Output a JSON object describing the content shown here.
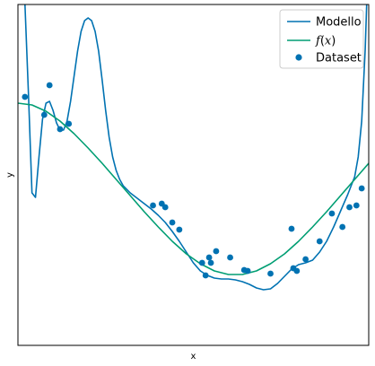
{
  "chart_data": {
    "type": "line",
    "title": "",
    "xlabel": "x",
    "ylabel": "y",
    "xticks_shown": false,
    "yticks_shown": false,
    "grid": false,
    "legend_position": "top-right",
    "xlim": [
      0,
      1
    ],
    "ylim": [
      -1.9,
      1.9
    ],
    "series": [
      {
        "name": "Modello",
        "kind": "line",
        "color": "#0072B2",
        "x": [
          0.0,
          0.02,
          0.03,
          0.04,
          0.05,
          0.06,
          0.07,
          0.08,
          0.09,
          0.1,
          0.11,
          0.12,
          0.13,
          0.14,
          0.15,
          0.16,
          0.17,
          0.18,
          0.19,
          0.2,
          0.21,
          0.22,
          0.23,
          0.24,
          0.25,
          0.26,
          0.27,
          0.28,
          0.29,
          0.3,
          0.32,
          0.34,
          0.36,
          0.38,
          0.4,
          0.42,
          0.44,
          0.46,
          0.48,
          0.5,
          0.52,
          0.54,
          0.56,
          0.58,
          0.6,
          0.62,
          0.64,
          0.66,
          0.68,
          0.7,
          0.72,
          0.74,
          0.76,
          0.78,
          0.8,
          0.82,
          0.84,
          0.86,
          0.88,
          0.9,
          0.92,
          0.94,
          0.96,
          0.97,
          0.98,
          0.99,
          1.0
        ],
        "y": [
          4.0,
          1.9,
          0.9,
          -0.2,
          -0.25,
          0.2,
          0.62,
          0.8,
          0.82,
          0.72,
          0.58,
          0.5,
          0.5,
          0.6,
          0.82,
          1.1,
          1.38,
          1.6,
          1.72,
          1.75,
          1.72,
          1.6,
          1.38,
          1.06,
          0.72,
          0.42,
          0.2,
          0.05,
          -0.05,
          -0.12,
          -0.2,
          -0.26,
          -0.32,
          -0.38,
          -0.45,
          -0.53,
          -0.63,
          -0.74,
          -0.86,
          -0.98,
          -1.07,
          -1.12,
          -1.15,
          -1.16,
          -1.16,
          -1.17,
          -1.19,
          -1.22,
          -1.26,
          -1.28,
          -1.27,
          -1.21,
          -1.13,
          -1.05,
          -1.0,
          -0.98,
          -0.95,
          -0.86,
          -0.74,
          -0.58,
          -0.4,
          -0.22,
          -0.02,
          0.2,
          0.6,
          1.4,
          2.6
        ]
      },
      {
        "name": "$f(x)$",
        "kind": "line",
        "color": "#009E73",
        "x": [
          0.0,
          0.04,
          0.08,
          0.12,
          0.16,
          0.2,
          0.24,
          0.28,
          0.32,
          0.36,
          0.4,
          0.44,
          0.48,
          0.52,
          0.56,
          0.6,
          0.64,
          0.68,
          0.72,
          0.76,
          0.8,
          0.84,
          0.88,
          0.92,
          0.96,
          1.0
        ],
        "y": [
          0.8,
          0.78,
          0.71,
          0.6,
          0.46,
          0.3,
          0.13,
          -0.05,
          -0.23,
          -0.41,
          -0.58,
          -0.74,
          -0.88,
          -0.99,
          -1.07,
          -1.11,
          -1.11,
          -1.07,
          -0.99,
          -0.88,
          -0.74,
          -0.58,
          -0.41,
          -0.23,
          -0.05,
          0.13
        ]
      },
      {
        "name": "Dataset",
        "kind": "scatter",
        "color": "#0072B2",
        "x": [
          0.02,
          0.075,
          0.09,
          0.12,
          0.145,
          0.385,
          0.41,
          0.42,
          0.44,
          0.46,
          0.525,
          0.535,
          0.545,
          0.55,
          0.565,
          0.605,
          0.645,
          0.655,
          0.72,
          0.785,
          0.78,
          0.795,
          0.82,
          0.86,
          0.895,
          0.925,
          0.945,
          0.965,
          0.98
        ],
        "y": [
          0.87,
          0.67,
          1.0,
          0.51,
          0.57,
          -0.34,
          -0.32,
          -0.36,
          -0.53,
          -0.61,
          -0.98,
          -1.12,
          -0.92,
          -0.98,
          -0.85,
          -0.92,
          -1.06,
          -1.07,
          -1.1,
          -1.04,
          -0.6,
          -1.07,
          -0.94,
          -0.74,
          -0.43,
          -0.58,
          -0.36,
          -0.34,
          -0.15
        ]
      }
    ]
  }
}
